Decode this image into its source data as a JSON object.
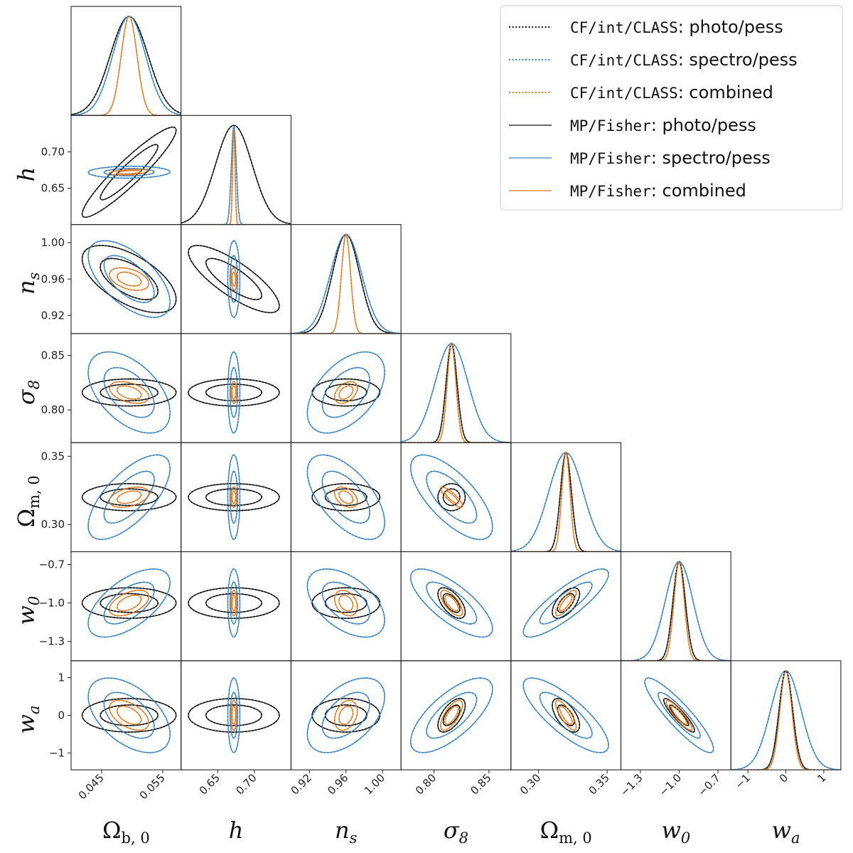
{
  "chart_data": {
    "type": "corner",
    "parameters": [
      {
        "key": "Omega_b0",
        "label_main": "Ω",
        "label_sub": "b, 0",
        "italic": false,
        "mean": 0.0495,
        "sigma": 0.003,
        "range": [
          0.04,
          0.058
        ],
        "ticks": [
          0.045,
          0.055
        ],
        "tick_labels": [
          "0.045",
          "0.055"
        ]
      },
      {
        "key": "h",
        "label_main": "h",
        "label_sub": "",
        "italic": true,
        "mean": 0.672,
        "sigma": 0.025,
        "range": [
          0.6,
          0.75
        ],
        "ticks": [
          0.65,
          0.7
        ],
        "tick_labels": [
          "0.65",
          "0.70"
        ]
      },
      {
        "key": "n_s",
        "label_main": "n",
        "label_sub": "s",
        "italic": true,
        "mean": 0.96,
        "sigma": 0.017,
        "range": [
          0.9,
          1.02
        ],
        "ticks": [
          0.92,
          0.96,
          1.0
        ],
        "tick_labels": [
          "0.92",
          "0.96",
          "1.00"
        ]
      },
      {
        "key": "sigma_8",
        "label_main": "σ",
        "label_sub": "8",
        "italic": true,
        "mean": 0.816,
        "sigma": 0.015,
        "range": [
          0.77,
          0.87
        ],
        "ticks": [
          0.8,
          0.85
        ],
        "tick_labels": [
          "0.80",
          "0.85"
        ]
      },
      {
        "key": "Omega_m0",
        "label_main": "Ω",
        "label_sub": "m, 0",
        "italic": false,
        "mean": 0.32,
        "sigma": 0.012,
        "range": [
          0.28,
          0.36
        ],
        "ticks": [
          0.3,
          0.35
        ],
        "tick_labels": [
          "0.30",
          "0.35"
        ]
      },
      {
        "key": "w_0",
        "label_main": "w",
        "label_sub": "0",
        "italic": true,
        "mean": -1.0,
        "sigma": 0.1,
        "range": [
          -1.45,
          -0.6
        ],
        "ticks": [
          -1.3,
          -1.0,
          -0.7
        ],
        "tick_labels": [
          "−1.3",
          "−1.0",
          "−0.7"
        ]
      },
      {
        "key": "w_a",
        "label_main": "w",
        "label_sub": "a",
        "italic": true,
        "mean": 0.0,
        "sigma": 0.4,
        "range": [
          -1.45,
          1.45
        ],
        "ticks": [
          -1,
          0,
          1
        ],
        "tick_labels": [
          "−1",
          "0",
          "1"
        ]
      }
    ],
    "series": [
      {
        "name_code": "CF/int/CLASS",
        "name_rest": ": photo/pess",
        "color": "#111111",
        "style": "dotted",
        "sigmas": [
          0.0031,
          0.025,
          0.0149,
          0.005,
          0.004,
          0.048,
          0.18
        ],
        "correlations": {
          "0-1": 0.93,
          "0-2": -0.6,
          "1-2": -0.8,
          "0-3": 0.0,
          "1-3": 0.0,
          "2-3": 0.0,
          "0-4": 0.0,
          "1-4": 0.0,
          "2-4": 0.0,
          "3-4": 0.0,
          "0-5": 0.0,
          "1-5": 0.0,
          "2-5": 0.0,
          "3-5": -0.6,
          "4-5": 0.6,
          "0-6": 0.0,
          "1-6": 0.0,
          "2-6": 0.0,
          "3-6": 0.6,
          "4-6": -0.6,
          "5-6": -0.9
        }
      },
      {
        "name_code": "CF/int/CLASS",
        "name_rest": ": spectro/pess",
        "color": "#3b84c1",
        "style": "dotted",
        "sigmas": [
          0.0027,
          0.0033,
          0.017,
          0.015,
          0.0125,
          0.107,
          0.4
        ],
        "correlations": {
          "0-1": 0.05,
          "0-2": -0.6,
          "1-2": 0.0,
          "0-3": -0.5,
          "1-3": 0.0,
          "2-3": 0.5,
          "0-4": 0.68,
          "1-4": 0.0,
          "2-4": -0.6,
          "3-4": -0.7,
          "0-5": 0.6,
          "1-5": 0.0,
          "2-5": -0.5,
          "3-5": -0.75,
          "4-5": 0.85,
          "0-6": -0.5,
          "1-6": 0.0,
          "2-6": 0.5,
          "3-6": 0.7,
          "4-6": -0.8,
          "5-6": -0.9
        }
      },
      {
        "name_code": "CF/int/CLASS",
        "name_rest": ": combined",
        "color": "#e07b24",
        "style": "dotted",
        "sigmas": [
          0.0013,
          0.0016,
          0.005,
          0.004,
          0.003,
          0.04,
          0.16
        ],
        "correlations": {
          "0-1": 0.4,
          "0-2": -0.4,
          "1-2": -0.2,
          "0-3": -0.4,
          "1-3": 0.0,
          "2-3": 0.4,
          "0-4": 0.4,
          "1-4": 0.0,
          "2-4": -0.4,
          "3-4": -0.85,
          "0-5": 0.5,
          "1-5": 0.0,
          "2-5": -0.3,
          "3-5": -0.7,
          "4-5": 0.8,
          "0-6": -0.5,
          "1-6": 0.0,
          "2-6": 0.3,
          "3-6": 0.7,
          "4-6": -0.8,
          "5-6": -0.9
        }
      },
      {
        "name_code": "MP/Fisher",
        "name_rest": ": photo/pess",
        "color": "#111111",
        "style": "solid",
        "sigmas": [
          0.0031,
          0.025,
          0.0149,
          0.005,
          0.004,
          0.048,
          0.18
        ],
        "correlations": {
          "0-1": 0.93,
          "0-2": -0.6,
          "1-2": -0.8,
          "0-3": 0.0,
          "1-3": 0.0,
          "2-3": 0.0,
          "0-4": 0.0,
          "1-4": 0.0,
          "2-4": 0.0,
          "3-4": 0.0,
          "0-5": 0.0,
          "1-5": 0.0,
          "2-5": 0.0,
          "3-5": -0.6,
          "4-5": 0.6,
          "0-6": 0.0,
          "1-6": 0.0,
          "2-6": 0.0,
          "3-6": 0.6,
          "4-6": -0.6,
          "5-6": -0.9
        }
      },
      {
        "name_code": "MP/Fisher",
        "name_rest": ": spectro/pess",
        "color": "#3b84c1",
        "style": "solid",
        "sigmas": [
          0.0027,
          0.0033,
          0.017,
          0.015,
          0.0125,
          0.107,
          0.4
        ],
        "correlations": {
          "0-1": 0.05,
          "0-2": -0.6,
          "1-2": 0.0,
          "0-3": -0.5,
          "1-3": 0.0,
          "2-3": 0.5,
          "0-4": 0.68,
          "1-4": 0.0,
          "2-4": -0.6,
          "3-4": -0.7,
          "0-5": 0.6,
          "1-5": 0.0,
          "2-5": -0.5,
          "3-5": -0.75,
          "4-5": 0.85,
          "0-6": -0.5,
          "1-6": 0.0,
          "2-6": 0.5,
          "3-6": 0.7,
          "4-6": -0.8,
          "5-6": -0.9
        }
      },
      {
        "name_code": "MP/Fisher",
        "name_rest": ": combined",
        "color": "#e07b24",
        "style": "solid",
        "sigmas": [
          0.0013,
          0.0016,
          0.005,
          0.004,
          0.003,
          0.04,
          0.16
        ],
        "correlations": {
          "0-1": 0.4,
          "0-2": -0.4,
          "1-2": -0.2,
          "0-3": -0.4,
          "1-3": 0.0,
          "2-3": 0.4,
          "0-4": 0.4,
          "1-4": 0.0,
          "2-4": -0.4,
          "3-4": -0.85,
          "0-5": 0.5,
          "1-5": 0.0,
          "2-5": -0.3,
          "3-5": -0.7,
          "4-5": 0.8,
          "0-6": -0.5,
          "1-6": 0.0,
          "2-6": 0.3,
          "3-6": 0.7,
          "4-6": -0.8,
          "5-6": -0.9
        }
      }
    ],
    "contour_levels": [
      "1σ",
      "2σ"
    ],
    "legend_position": "top-right",
    "grid": false
  }
}
